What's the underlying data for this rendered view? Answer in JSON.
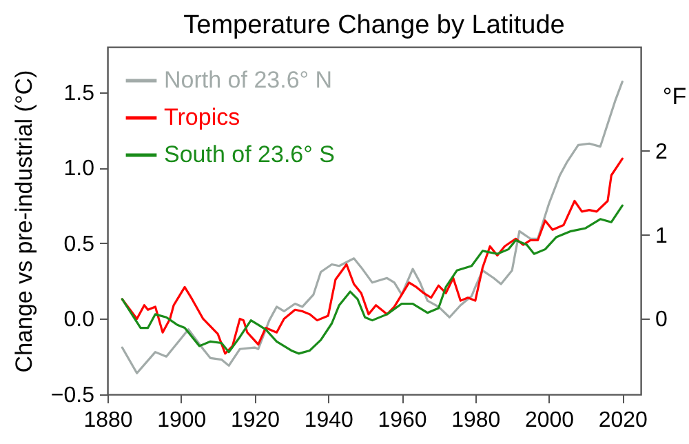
{
  "chart_data": {
    "type": "line",
    "title": "Temperature Change by Latitude",
    "ylabel": "Change vs pre-industrial (°C)",
    "y2label": "°F",
    "xlim": [
      1880,
      2025
    ],
    "xticks": [
      1880,
      1900,
      1920,
      1940,
      1960,
      1980,
      2000,
      2020
    ],
    "ylim": [
      -0.5,
      1.8
    ],
    "yticks": [
      -0.5,
      {
        "value": 0,
        "label": "0.0"
      },
      0.5,
      {
        "value": 1,
        "label": "1.0"
      },
      1.5
    ],
    "y2lim": [
      -0.9,
      3.24
    ],
    "y2ticks": [
      0,
      1,
      2
    ],
    "grid": false,
    "legend": "top left",
    "marker": "none",
    "line_style": "solid",
    "series": [
      {
        "name": "North of 23.6° N",
        "color": "#a2aba9",
        "x": [
          1884,
          1888,
          1893,
          1896,
          1900,
          1902,
          1906,
          1908,
          1911,
          1913,
          1916,
          1920,
          1921,
          1924,
          1926,
          1928,
          1931,
          1933,
          1936,
          1938,
          1941,
          1943,
          1947,
          1949,
          1952,
          1956,
          1958,
          1960,
          1963,
          1965,
          1967,
          1970,
          1973,
          1976,
          1979,
          1980,
          1982,
          1985,
          1987,
          1990,
          1992,
          1995,
          1997,
          2000,
          2003,
          2005,
          2008,
          2011,
          2014,
          2016,
          2018,
          2020
        ],
        "values": [
          -0.19,
          -0.36,
          -0.22,
          -0.25,
          -0.13,
          -0.07,
          -0.2,
          -0.26,
          -0.27,
          -0.31,
          -0.2,
          -0.19,
          -0.2,
          -0.01,
          0.08,
          0.05,
          0.1,
          0.08,
          0.16,
          0.31,
          0.36,
          0.35,
          0.4,
          0.34,
          0.24,
          0.27,
          0.24,
          0.16,
          0.33,
          0.24,
          0.12,
          0.08,
          0.01,
          0.09,
          0.15,
          0.21,
          0.32,
          0.27,
          0.23,
          0.32,
          0.58,
          0.53,
          0.53,
          0.76,
          0.95,
          1.04,
          1.15,
          1.16,
          1.14,
          1.29,
          1.44,
          1.57
        ]
      },
      {
        "name": "Tropics",
        "color": "#ff0000",
        "x": [
          1884,
          1888,
          1890,
          1891,
          1893,
          1895,
          1897,
          1898,
          1901,
          1903,
          1906,
          1910,
          1912,
          1914,
          1916,
          1917,
          1918,
          1921,
          1923,
          1926,
          1928,
          1931,
          1933,
          1935,
          1937,
          1940,
          1942,
          1945,
          1947,
          1949,
          1951,
          1953,
          1956,
          1958,
          1962,
          1964,
          1966,
          1968,
          1970,
          1972,
          1974,
          1976,
          1978,
          1980,
          1982,
          1984,
          1986,
          1988,
          1991,
          1993,
          1995,
          1997,
          1999,
          2001,
          2004,
          2007,
          2009,
          2011,
          2013,
          2016,
          2017,
          2020
        ],
        "values": [
          0.13,
          0.0,
          0.09,
          0.06,
          0.08,
          -0.09,
          0.0,
          0.09,
          0.21,
          0.13,
          0.0,
          -0.1,
          -0.23,
          -0.18,
          0.0,
          -0.01,
          -0.09,
          -0.17,
          -0.06,
          -0.09,
          0.0,
          0.06,
          0.05,
          0.03,
          -0.01,
          0.02,
          0.26,
          0.36,
          0.23,
          0.17,
          0.03,
          0.09,
          0.03,
          0.08,
          0.24,
          0.21,
          0.17,
          0.14,
          0.22,
          0.17,
          0.27,
          0.12,
          0.14,
          0.12,
          0.34,
          0.48,
          0.42,
          0.48,
          0.53,
          0.49,
          0.52,
          0.52,
          0.65,
          0.59,
          0.62,
          0.78,
          0.71,
          0.72,
          0.71,
          0.78,
          0.95,
          1.06
        ]
      },
      {
        "name": "South of 23.6° S",
        "color": "#1a8c1a",
        "x": [
          1884,
          1889,
          1891,
          1893,
          1896,
          1899,
          1901,
          1905,
          1908,
          1911,
          1913,
          1916,
          1919,
          1921,
          1923,
          1926,
          1930,
          1932,
          1935,
          1938,
          1941,
          1943,
          1946,
          1948,
          1950,
          1952,
          1956,
          1960,
          1963,
          1967,
          1970,
          1972,
          1975,
          1979,
          1982,
          1986,
          1989,
          1991,
          1994,
          1996,
          1999,
          2002,
          2006,
          2010,
          2014,
          2017,
          2020
        ],
        "values": [
          0.13,
          -0.06,
          -0.06,
          0.03,
          0.01,
          -0.04,
          -0.06,
          -0.18,
          -0.15,
          -0.16,
          -0.22,
          -0.12,
          -0.01,
          -0.04,
          -0.07,
          -0.15,
          -0.21,
          -0.23,
          -0.21,
          -0.14,
          -0.03,
          0.09,
          0.18,
          0.13,
          0.01,
          -0.01,
          0.03,
          0.1,
          0.1,
          0.04,
          0.07,
          0.21,
          0.32,
          0.35,
          0.45,
          0.43,
          0.46,
          0.52,
          0.49,
          0.43,
          0.46,
          0.54,
          0.58,
          0.6,
          0.66,
          0.64,
          0.75
        ]
      }
    ]
  }
}
